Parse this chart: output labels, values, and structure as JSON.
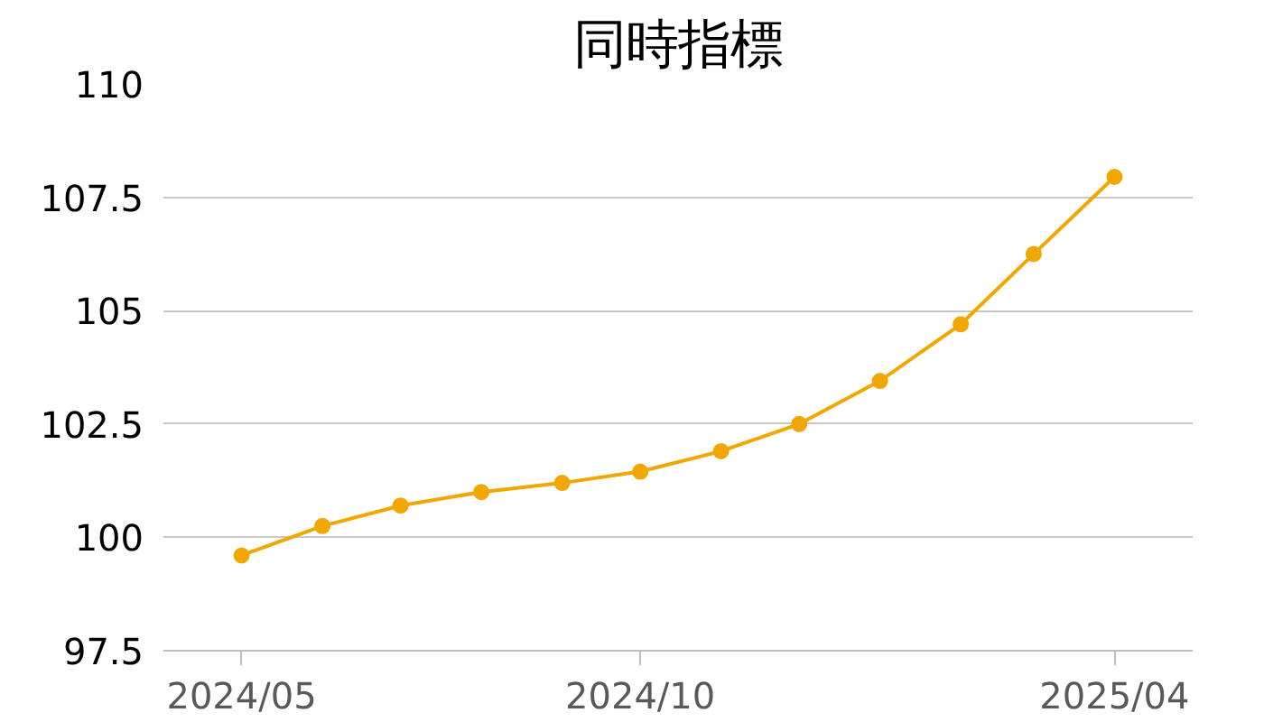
{
  "chart_data": {
    "type": "line",
    "title": "同時指標",
    "x": [
      "2024-05",
      "2024-06",
      "2024-07",
      "2024-08",
      "2024-09",
      "2024-10",
      "2024-11",
      "2024-12",
      "2025-01",
      "2025-02",
      "2025-03",
      "2025-04"
    ],
    "series": [
      {
        "color": "#f0a800",
        "values": [
          99.6,
          100.25,
          100.7,
          101.0,
          101.2,
          101.45,
          101.9,
          102.5,
          103.45,
          104.7,
          106.25,
          107.95
        ]
      }
    ],
    "xlim": [
      "2024-04",
      "2025-05"
    ],
    "xticks": [
      {
        "value": "2024-05",
        "label": "2024/05"
      },
      {
        "value": "2024-10",
        "label": "2024/10"
      },
      {
        "value": "2025-04",
        "label": "2025/04"
      }
    ],
    "ylim": [
      97.5,
      110
    ],
    "yticks": [
      97.5,
      100,
      102.5,
      105,
      107.5,
      110
    ],
    "grid": "y",
    "marker": "circle",
    "line_style": "solid"
  }
}
